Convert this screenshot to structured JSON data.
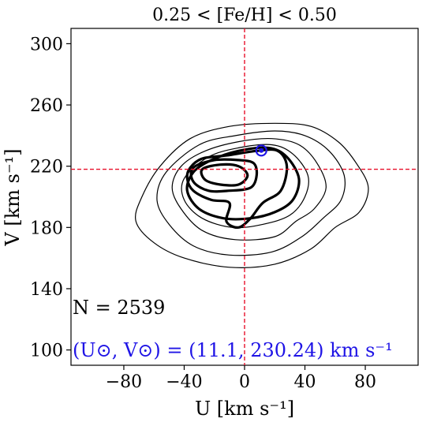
{
  "chart_data": {
    "type": "contour",
    "title": "0.25 < [Fe/H] < 0.50",
    "xlabel": "U [km s⁻¹]",
    "ylabel": "V [km s⁻¹]",
    "xlim": [
      -115,
      115
    ],
    "ylim": [
      90,
      310
    ],
    "xticks": [
      "−80",
      "−40",
      "0",
      "40",
      "80"
    ],
    "xtick_values": [
      -80,
      -40,
      0,
      40,
      80
    ],
    "yticks": [
      "100",
      "140",
      "180",
      "220",
      "260",
      "300"
    ],
    "ytick_values": [
      100,
      140,
      180,
      220,
      260,
      300
    ],
    "grid": false,
    "reference_lines": {
      "vertical_x": 0,
      "horizontal_y": 218,
      "color": "#e8102a",
      "style": "dashed"
    },
    "sun_marker": {
      "u": 11.1,
      "v": 230.24,
      "color": "#1f14e6"
    },
    "annotations": {
      "count": "N = 2539",
      "sun_velocity": "(U⊙, V⊙) = (11.1, 230.24) km s⁻¹"
    },
    "contours": [
      {
        "level": 1,
        "weight": "thin",
        "points": [
          [
            -36,
            238
          ],
          [
            -10,
            246
          ],
          [
            20,
            248
          ],
          [
            44,
            246
          ],
          [
            62,
            236
          ],
          [
            74,
            222
          ],
          [
            82,
            206
          ],
          [
            76,
            190
          ],
          [
            60,
            180
          ],
          [
            44,
            166
          ],
          [
            20,
            156
          ],
          [
            -10,
            154
          ],
          [
            -40,
            160
          ],
          [
            -60,
            170
          ],
          [
            -72,
            184
          ],
          [
            -68,
            200
          ],
          [
            -56,
            220
          ],
          [
            -36,
            238
          ]
        ]
      },
      {
        "level": 2,
        "weight": "thin",
        "points": [
          [
            -30,
            234
          ],
          [
            -6,
            240
          ],
          [
            20,
            243
          ],
          [
            40,
            240
          ],
          [
            56,
            230
          ],
          [
            66,
            214
          ],
          [
            64,
            198
          ],
          [
            52,
            186
          ],
          [
            38,
            174
          ],
          [
            18,
            164
          ],
          [
            -10,
            162
          ],
          [
            -34,
            168
          ],
          [
            -50,
            182
          ],
          [
            -58,
            198
          ],
          [
            -52,
            216
          ],
          [
            -30,
            234
          ]
        ]
      },
      {
        "level": 3,
        "weight": "thin",
        "points": [
          [
            -26,
            230
          ],
          [
            -4,
            236
          ],
          [
            18,
            238
          ],
          [
            36,
            234
          ],
          [
            48,
            222
          ],
          [
            54,
            206
          ],
          [
            46,
            192
          ],
          [
            34,
            184
          ],
          [
            20,
            174
          ],
          [
            -6,
            172
          ],
          [
            -28,
            178
          ],
          [
            -42,
            192
          ],
          [
            -48,
            206
          ],
          [
            -42,
            220
          ],
          [
            -26,
            230
          ]
        ]
      },
      {
        "level": 4,
        "weight": "thin",
        "points": [
          [
            -24,
            226
          ],
          [
            -4,
            232
          ],
          [
            18,
            234
          ],
          [
            32,
            228
          ],
          [
            42,
            214
          ],
          [
            40,
            200
          ],
          [
            30,
            188
          ],
          [
            12,
            182
          ],
          [
            -8,
            180
          ],
          [
            -28,
            186
          ],
          [
            -40,
            198
          ],
          [
            -40,
            212
          ],
          [
            -24,
            226
          ]
        ]
      },
      {
        "level": 5,
        "weight": "thick",
        "points": [
          [
            -22,
            224
          ],
          [
            -4,
            230
          ],
          [
            16,
            232
          ],
          [
            28,
            226
          ],
          [
            36,
            212
          ],
          [
            32,
            198
          ],
          [
            20,
            190
          ],
          [
            4,
            186
          ],
          [
            -14,
            186
          ],
          [
            -30,
            192
          ],
          [
            -38,
            204
          ],
          [
            -34,
            216
          ],
          [
            -22,
            224
          ]
        ]
      },
      {
        "level": 6,
        "weight": "thick",
        "points": [
          [
            -36,
            219
          ],
          [
            -28,
            225
          ],
          [
            -12,
            227
          ],
          [
            8,
            230
          ],
          [
            22,
            230
          ],
          [
            28,
            220
          ],
          [
            24,
            204
          ],
          [
            12,
            196
          ],
          [
            4,
            186
          ],
          [
            -4,
            180
          ],
          [
            -12,
            184
          ],
          [
            -10,
            196
          ],
          [
            -22,
            198
          ],
          [
            -34,
            204
          ],
          [
            -38,
            212
          ],
          [
            -36,
            219
          ]
        ]
      },
      {
        "level": 7,
        "weight": "thick",
        "points": [
          [
            -34,
            219
          ],
          [
            -20,
            224
          ],
          [
            -4,
            224
          ],
          [
            6,
            222
          ],
          [
            8,
            214
          ],
          [
            4,
            206
          ],
          [
            -10,
            204
          ],
          [
            -24,
            204
          ],
          [
            -34,
            210
          ],
          [
            -34,
            219
          ]
        ]
      },
      {
        "level": 8,
        "weight": "thick",
        "points": [
          [
            -28,
            218
          ],
          [
            -16,
            221
          ],
          [
            -4,
            220
          ],
          [
            2,
            214
          ],
          [
            -4,
            208
          ],
          [
            -16,
            208
          ],
          [
            -26,
            211
          ],
          [
            -28,
            218
          ]
        ]
      }
    ]
  }
}
